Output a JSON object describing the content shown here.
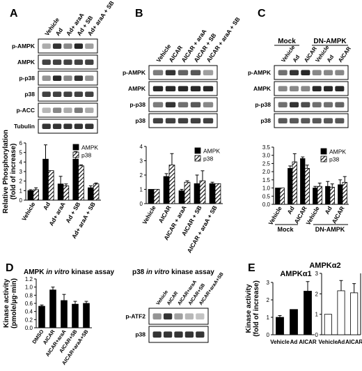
{
  "panels": [
    {
      "letter": "A",
      "lane_labels": [
        "Vehicle",
        "Ad",
        "Ad+ araA",
        "Ad + SB",
        "Ad+ araA + SB"
      ],
      "blot_rows": [
        "p-AMPK",
        "AMPK",
        "p-p38",
        "p38",
        "p-ACC",
        "Tubulin"
      ],
      "chart_index": 0
    },
    {
      "letter": "B",
      "lane_labels": [
        "Vehicle",
        "AICAR",
        "AICAR + araA",
        "AICAR + SB",
        "AICAR + araA + SB"
      ],
      "blot_rows": [
        "p-AMPK",
        "AMPK",
        "p-p38",
        "p38"
      ],
      "chart_index": 1
    },
    {
      "letter": "C",
      "group_labels": [
        "Mock",
        "DN-AMPK"
      ],
      "lane_labels": [
        "Vehicle",
        "Ad",
        "AICAR",
        "Vehicle",
        "Ad",
        "AICAR"
      ],
      "blot_rows": [
        "p-AMPK",
        "AMPK",
        "p-p38",
        "p38"
      ],
      "chart_index": 2
    },
    {
      "letter": "D",
      "left_title_parts": [
        "AMPK ",
        "in vitro",
        " kinase assay"
      ],
      "right_title_parts": [
        "p38 ",
        "in vitro",
        " kinase assay"
      ],
      "lane_labels": [
        "Vehicle",
        "AICAR",
        "AICAR+araA",
        "AICAR+SB",
        "AICAR+araA+SB"
      ],
      "blot_rows": [
        "p-ATF2",
        "p38"
      ],
      "chart_index": 3
    },
    {
      "letter": "E",
      "chart_indices": [
        4,
        5
      ]
    }
  ],
  "colors": {
    "black": "#000000",
    "white": "#ffffff",
    "hatch": "#000000",
    "band": "#111111"
  },
  "chart_data": [
    {
      "type": "bar",
      "ylabel": "Relative Phosphorylation (fold of increase)",
      "ylim": [
        0,
        6
      ],
      "yticks": [
        0,
        1,
        2,
        3,
        4,
        5,
        6
      ],
      "categories": [
        "Vehicle",
        "Ad",
        "Ad+ araA",
        "Ad + SB",
        "Ad+ araA + SB"
      ],
      "legend": "top-right",
      "series": [
        {
          "name": "AMPK",
          "style": "solid",
          "values": [
            1.0,
            4.3,
            1.7,
            4.3,
            1.3
          ],
          "errors": [
            0.1,
            1.5,
            0.8,
            0.8,
            0.2
          ]
        },
        {
          "name": "p38",
          "style": "hatched",
          "values": [
            1.1,
            3.1,
            1.5,
            3.6,
            1.7
          ],
          "errors": [
            0.2,
            0.0,
            0.2,
            0.1,
            0.1
          ]
        }
      ]
    },
    {
      "type": "bar",
      "ylim": [
        0,
        4
      ],
      "yticks": [
        0,
        1,
        2,
        3,
        4
      ],
      "categories": [
        "Vehicle",
        "AICAR",
        "AICAR + araA",
        "AICAR + SB",
        "AICAR + araA + SB"
      ],
      "legend": "top-right",
      "series": [
        {
          "name": "AMPK",
          "style": "solid",
          "values": [
            1.0,
            1.9,
            0.9,
            1.4,
            1.4
          ],
          "errors": [
            0.0,
            0.2,
            0.1,
            0.6,
            0.1
          ]
        },
        {
          "name": "p38",
          "style": "hatched",
          "values": [
            1.0,
            2.7,
            1.5,
            1.6,
            1.4
          ],
          "errors": [
            0.0,
            0.8,
            0.1,
            0.7,
            0.0
          ]
        }
      ]
    },
    {
      "type": "bar",
      "ylim": [
        0,
        3.5
      ],
      "yticks": [
        0,
        0.5,
        1.0,
        1.5,
        2.0,
        2.5,
        3.0,
        3.5
      ],
      "categories": [
        "Vehicle",
        "Ad",
        "AICAR",
        "Vehicle",
        "Ad",
        "AICAR"
      ],
      "groups": [
        "Mock",
        "DN-AMPK"
      ],
      "legend": "top-right",
      "series": [
        {
          "name": "AMPK",
          "style": "solid",
          "values": [
            1.0,
            2.2,
            2.8,
            1.0,
            1.1,
            1.2
          ],
          "errors": [
            0.0,
            0.15,
            0.1,
            0.1,
            0.3,
            0.3
          ]
        },
        {
          "name": "p38",
          "style": "hatched",
          "values": [
            1.0,
            2.6,
            2.2,
            1.1,
            1.05,
            1.35
          ],
          "errors": [
            0.0,
            0.5,
            0.2,
            0.2,
            0.2,
            0.35
          ]
        }
      ]
    },
    {
      "type": "bar",
      "ylabel": "Kinase activity (pmole/µg·min)",
      "ylim": [
        0,
        1.2
      ],
      "yticks": [
        0,
        0.2,
        0.4,
        0.6,
        0.8,
        1.0,
        1.2
      ],
      "categories": [
        "DMSO",
        "AICAR",
        "AICAR+araA",
        "AICAR+SB",
        "AICAR+araA+SB"
      ],
      "series": [
        {
          "style": "solid",
          "values": [
            0.53,
            0.93,
            0.67,
            0.58,
            0.6
          ],
          "errors": [
            0.03,
            0.07,
            0.15,
            0.07,
            0.05
          ]
        }
      ]
    },
    {
      "type": "bar",
      "title": "AMPKα1",
      "ylabel": "Kinase activity (fold of increase)",
      "ylim": [
        0,
        3
      ],
      "yticks": [
        0,
        1,
        2,
        3
      ],
      "categories": [
        "Vehicle",
        "Ad",
        "AICAR"
      ],
      "series": [
        {
          "style": "solid",
          "values": [
            1.0,
            1.45,
            2.5
          ],
          "errors": [
            0.1,
            0.0,
            0.55
          ]
        }
      ]
    },
    {
      "type": "bar",
      "title": "AMPKα2",
      "ylim": [
        0,
        3
      ],
      "yticks": [
        0,
        1,
        2,
        3
      ],
      "categories": [
        "Vehicle",
        "Ad",
        "AICAR"
      ],
      "series": [
        {
          "style": "open",
          "values": [
            1.0,
            2.15,
            2.05
          ],
          "errors": [
            0.0,
            0.5,
            0.45
          ]
        }
      ]
    }
  ]
}
